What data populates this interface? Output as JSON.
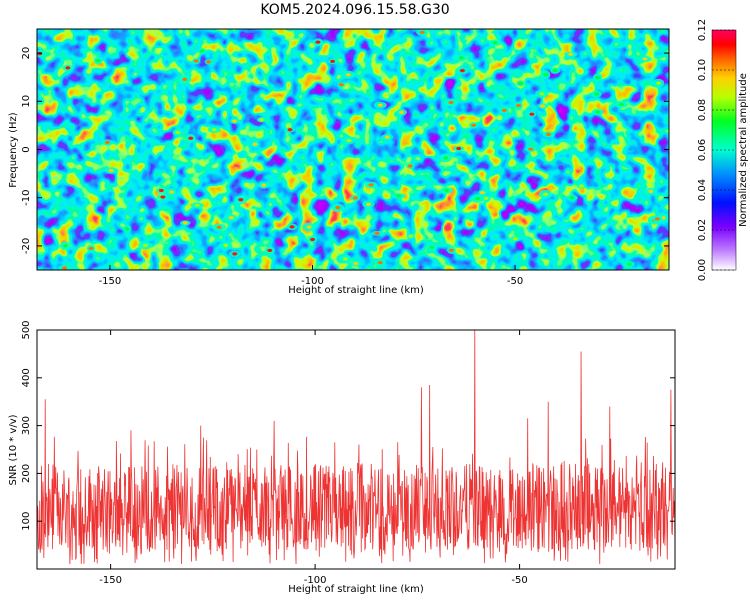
{
  "title": "KOM5.2024.096.15.58.G30",
  "chart_data": [
    {
      "type": "heatmap",
      "xlabel": "Height of straight line (km)",
      "ylabel": "Frequency (Hz)",
      "xlim": [
        -168,
        -12
      ],
      "ylim": [
        -25,
        25
      ],
      "x_ticks": [
        -150,
        -100,
        -50
      ],
      "y_ticks": [
        -20,
        -10,
        0,
        10,
        20
      ],
      "colorbar": {
        "label": "Normalized spectral amplitude",
        "range": [
          0.0,
          0.12
        ],
        "ticks": [
          0.0,
          0.02,
          0.04,
          0.06,
          0.08,
          0.1,
          0.12
        ],
        "tick_labels": [
          "0.00",
          "0.02",
          "0.04",
          "0.06",
          "0.08",
          "0.10",
          "0.12"
        ],
        "colormap": [
          "#ffffff",
          "#9000ff",
          "#0000ff",
          "#00aaff",
          "#00ffcc",
          "#00ff00",
          "#d8ff00",
          "#ffaa00",
          "#ff0000",
          "#ff0066"
        ]
      },
      "description_values": "random noise field, amplitudes mostly 0.01-0.06 with sparse peaks up to ~0.12"
    },
    {
      "type": "line",
      "xlabel": "Height of straight line (km)",
      "ylabel": "SNR (10 * v/v)",
      "xlim": [
        -168,
        -12
      ],
      "ylim": [
        0,
        500
      ],
      "x_ticks": [
        -150,
        -100,
        -50
      ],
      "y_ticks": [
        100,
        200,
        300,
        400,
        500
      ],
      "line_color": "#ee3333",
      "baseline_range": [
        40,
        220
      ],
      "peaks": [
        {
          "x": -166,
          "y": 355
        },
        {
          "x": -145,
          "y": 290
        },
        {
          "x": -128,
          "y": 300
        },
        {
          "x": -110,
          "y": 310
        },
        {
          "x": -74,
          "y": 380
        },
        {
          "x": -72,
          "y": 385
        },
        {
          "x": -61,
          "y": 500
        },
        {
          "x": -48,
          "y": 315
        },
        {
          "x": -43,
          "y": 350
        },
        {
          "x": -35,
          "y": 455
        },
        {
          "x": -28,
          "y": 340
        },
        {
          "x": -13,
          "y": 375
        }
      ]
    }
  ]
}
